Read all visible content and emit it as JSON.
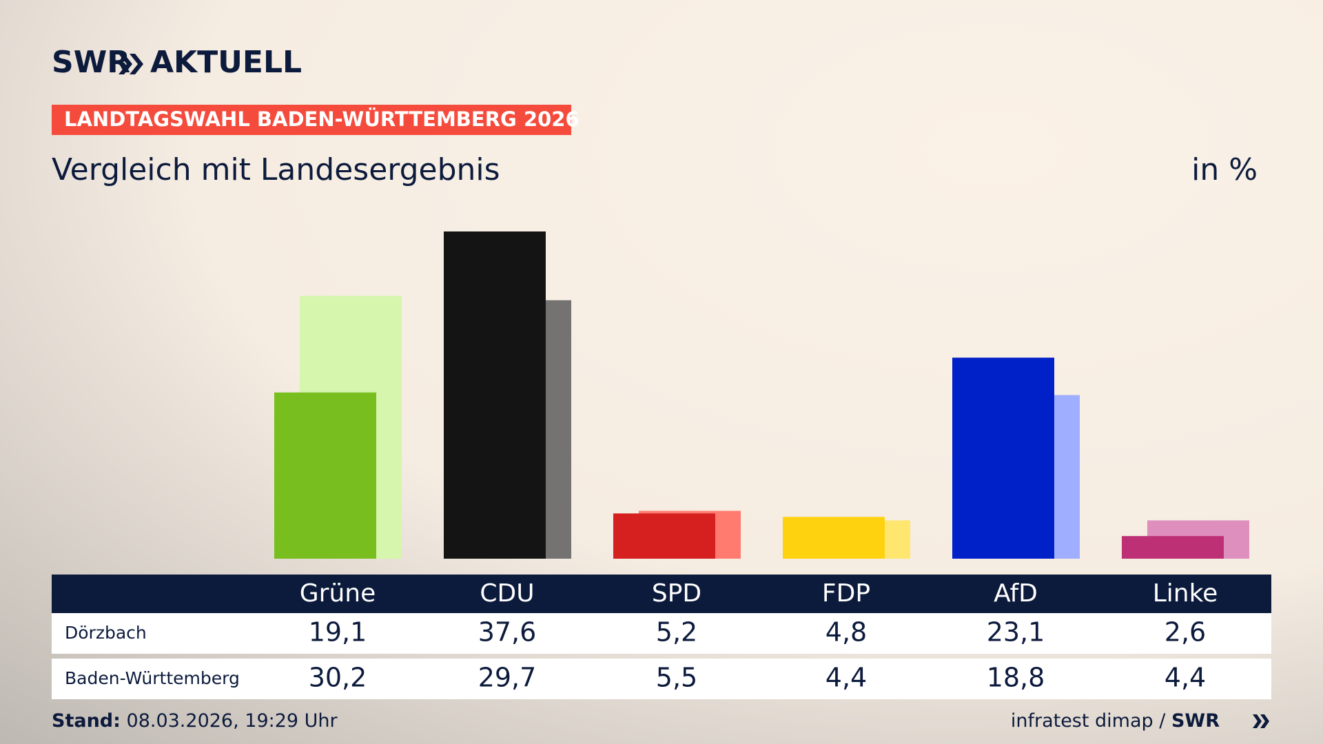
{
  "brand": {
    "name": "SWR",
    "product": "AKTUELL"
  },
  "chart_data": {
    "type": "bar",
    "kicker": "LANDTAGSWAHL BADEN-WÜRTTEMBERG 2026",
    "title": "Vergleich mit Landesergebnis",
    "unit": "in %",
    "categories": [
      "Grüne",
      "CDU",
      "SPD",
      "FDP",
      "AfD",
      "Linke"
    ],
    "series": [
      {
        "name": "Dörzbach",
        "colors": [
          "#78be1e",
          "#141414",
          "#d61f1f",
          "#ffd20f",
          "#0021c8",
          "#be3075"
        ],
        "values": [
          19.1,
          37.6,
          5.2,
          4.8,
          23.1,
          2.6
        ],
        "value_labels": [
          "19,1",
          "37,6",
          "5,2",
          "4,8",
          "23,1",
          "2,6"
        ]
      },
      {
        "name": "Baden-Württemberg",
        "colors": [
          "#d6f5ad",
          "#757371",
          "#ff7b70",
          "#ffe66e",
          "#9faeff",
          "#df8fbd"
        ],
        "values": [
          30.2,
          29.7,
          5.5,
          4.4,
          18.8,
          4.4
        ],
        "value_labels": [
          "30,2",
          "29,7",
          "5,5",
          "4,4",
          "18,8",
          "4,4"
        ]
      }
    ]
  },
  "footer": {
    "stand_label": "Stand:",
    "stand": "08.03.2026, 19:29 Uhr",
    "source": "infratest dimap",
    "separator": "/",
    "brand": "SWR"
  }
}
